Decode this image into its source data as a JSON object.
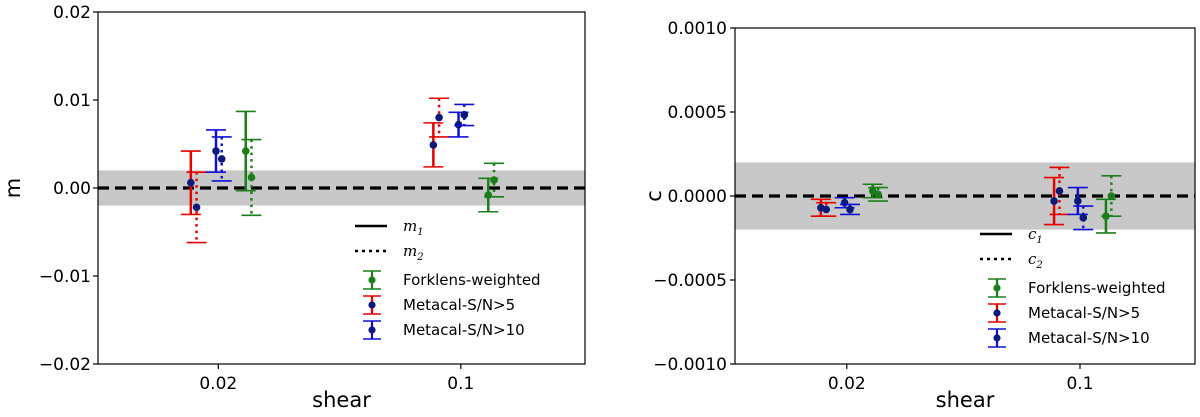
{
  "chart_data": [
    {
      "type": "scatter",
      "panel": "m",
      "ylabel": "m",
      "xlabel": "shear",
      "ylim": [
        -0.02,
        0.02
      ],
      "yticks": [
        -0.02,
        -0.01,
        0.0,
        0.01,
        0.02
      ],
      "ytick_labels": [
        "−0.02",
        "−0.01",
        "0.00",
        "0.01",
        "0.02"
      ],
      "categories": [
        "0.02",
        "0.1"
      ],
      "band": [
        -0.002,
        0.002
      ],
      "reference_line": 0.0,
      "legend": {
        "position": "lower-center",
        "line_entries": [
          {
            "symbol": "m",
            "sub": "1",
            "style": "solid"
          },
          {
            "symbol": "m",
            "sub": "2",
            "style": "dotted"
          }
        ],
        "entries": [
          "Forklens-weighted",
          "Metacal-S/N>5",
          "Metacal-S/N>10"
        ]
      },
      "series": [
        {
          "legend_index": 0,
          "component": 1,
          "category": 0,
          "offset": 0.12,
          "value": 0.0042,
          "err": 0.0045
        },
        {
          "legend_index": 0,
          "component": 2,
          "category": 0,
          "offset": 0.145,
          "value": 0.0012,
          "err": 0.0043
        },
        {
          "legend_index": 1,
          "component": 1,
          "category": 0,
          "offset": -0.12,
          "value": 0.0006,
          "err": 0.0036
        },
        {
          "legend_index": 1,
          "component": 2,
          "category": 0,
          "offset": -0.095,
          "value": -0.0022,
          "err": 0.004
        },
        {
          "legend_index": 2,
          "component": 1,
          "category": 0,
          "offset": -0.01,
          "value": 0.0042,
          "err": 0.0024
        },
        {
          "legend_index": 2,
          "component": 2,
          "category": 0,
          "offset": 0.015,
          "value": 0.0033,
          "err": 0.0025
        },
        {
          "legend_index": 0,
          "component": 1,
          "category": 1,
          "offset": 0.12,
          "value": -0.0008,
          "err": 0.0019
        },
        {
          "legend_index": 0,
          "component": 2,
          "category": 1,
          "offset": 0.145,
          "value": 0.0009,
          "err": 0.0019
        },
        {
          "legend_index": 1,
          "component": 1,
          "category": 1,
          "offset": -0.12,
          "value": 0.0049,
          "err": 0.0025
        },
        {
          "legend_index": 1,
          "component": 2,
          "category": 1,
          "offset": -0.095,
          "value": 0.008,
          "err": 0.0022
        },
        {
          "legend_index": 2,
          "component": 1,
          "category": 1,
          "offset": -0.01,
          "value": 0.0072,
          "err": 0.0014
        },
        {
          "legend_index": 2,
          "component": 2,
          "category": 1,
          "offset": 0.015,
          "value": 0.0083,
          "err": 0.0012
        }
      ]
    },
    {
      "type": "scatter",
      "panel": "c",
      "ylabel": "c",
      "xlabel": "shear",
      "ylim": [
        -0.001,
        0.001
      ],
      "yticks": [
        -0.001,
        -0.0005,
        0.0,
        0.0005,
        0.001
      ],
      "ytick_labels": [
        "−0.0010",
        "−0.0005",
        "0.0000",
        "0.0005",
        "0.0010"
      ],
      "categories": [
        "0.02",
        "0.1"
      ],
      "band": [
        -0.0002,
        0.0002
      ],
      "reference_line": 0.0,
      "legend": {
        "position": "lower-right",
        "line_entries": [
          {
            "symbol": "c",
            "sub": "1",
            "style": "solid"
          },
          {
            "symbol": "c",
            "sub": "2",
            "style": "dotted"
          }
        ],
        "entries": [
          "Forklens-weighted",
          "Metacal-S/N>5",
          "Metacal-S/N>10"
        ]
      },
      "series": [
        {
          "legend_index": 0,
          "component": 1,
          "category": 0,
          "offset": 0.12,
          "value": 3e-05,
          "err": 4e-05
        },
        {
          "legend_index": 0,
          "component": 2,
          "category": 0,
          "offset": 0.145,
          "value": 1e-05,
          "err": 4e-05
        },
        {
          "legend_index": 1,
          "component": 1,
          "category": 0,
          "offset": -0.12,
          "value": -7e-05,
          "err": 5e-05
        },
        {
          "legend_index": 1,
          "component": 2,
          "category": 0,
          "offset": -0.095,
          "value": -8e-05,
          "err": 4e-05
        },
        {
          "legend_index": 2,
          "component": 1,
          "category": 0,
          "offset": -0.01,
          "value": -4e-05,
          "err": 3e-05
        },
        {
          "legend_index": 2,
          "component": 2,
          "category": 0,
          "offset": 0.015,
          "value": -8e-05,
          "err": 3e-05
        },
        {
          "legend_index": 0,
          "component": 1,
          "category": 1,
          "offset": 0.12,
          "value": -0.00012,
          "err": 0.0001
        },
        {
          "legend_index": 0,
          "component": 2,
          "category": 1,
          "offset": 0.145,
          "value": 0.0,
          "err": 0.00012
        },
        {
          "legend_index": 1,
          "component": 1,
          "category": 1,
          "offset": -0.12,
          "value": -3e-05,
          "err": 0.00014
        },
        {
          "legend_index": 1,
          "component": 2,
          "category": 1,
          "offset": -0.095,
          "value": 3e-05,
          "err": 0.00014
        },
        {
          "legend_index": 2,
          "component": 1,
          "category": 1,
          "offset": -0.01,
          "value": -3e-05,
          "err": 8e-05
        },
        {
          "legend_index": 2,
          "component": 2,
          "category": 1,
          "offset": 0.015,
          "value": -0.00013,
          "err": 7e-05
        }
      ]
    }
  ],
  "colors": {
    "series_bar": [
      "#1a7f1a",
      "#e60000",
      "#1010d8"
    ],
    "series_marker": [
      "#1a7f1a",
      "#0a1a7a",
      "#0a1a7a"
    ],
    "band": "#c8c8c8",
    "reference_line": "#000000"
  }
}
